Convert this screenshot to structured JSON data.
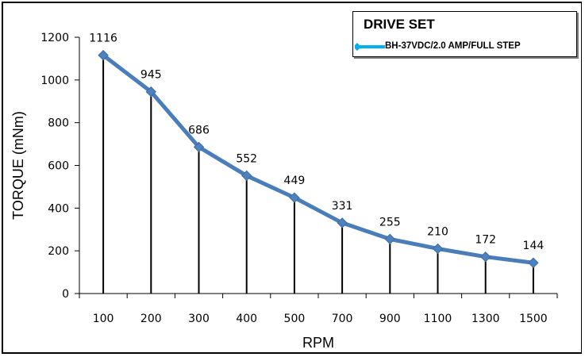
{
  "chart_data": {
    "type": "line",
    "title": "",
    "xlabel": "RPM",
    "ylabel": "TORQUE (mNm)",
    "categories": [
      "100",
      "200",
      "300",
      "400",
      "500",
      "700",
      "900",
      "1100",
      "1300",
      "1500"
    ],
    "series": [
      {
        "name": "BH-37VDC/2.0 AMP/FULL STEP",
        "values": [
          1116,
          945,
          686,
          552,
          449,
          331,
          255,
          210,
          172,
          144
        ],
        "data_labels": [
          "1116",
          "945",
          "686",
          "552",
          "449",
          "331",
          "255",
          "210",
          "172",
          "144"
        ]
      }
    ],
    "ylim": [
      0,
      1200
    ],
    "y_ticks": [
      0,
      200,
      400,
      600,
      800,
      1000,
      1200
    ],
    "y_tick_labels": [
      "0",
      "200",
      "400",
      "600",
      "800",
      "1000",
      "1200"
    ],
    "grid": false,
    "drop_lines": true,
    "legend": {
      "title": "DRIVE SET",
      "position": "top-right"
    },
    "colors": {
      "line": "#4a7ebb",
      "marker": "#4f81bd",
      "legend_swatch": "#00b0f0",
      "drop_line": "#000000"
    }
  }
}
